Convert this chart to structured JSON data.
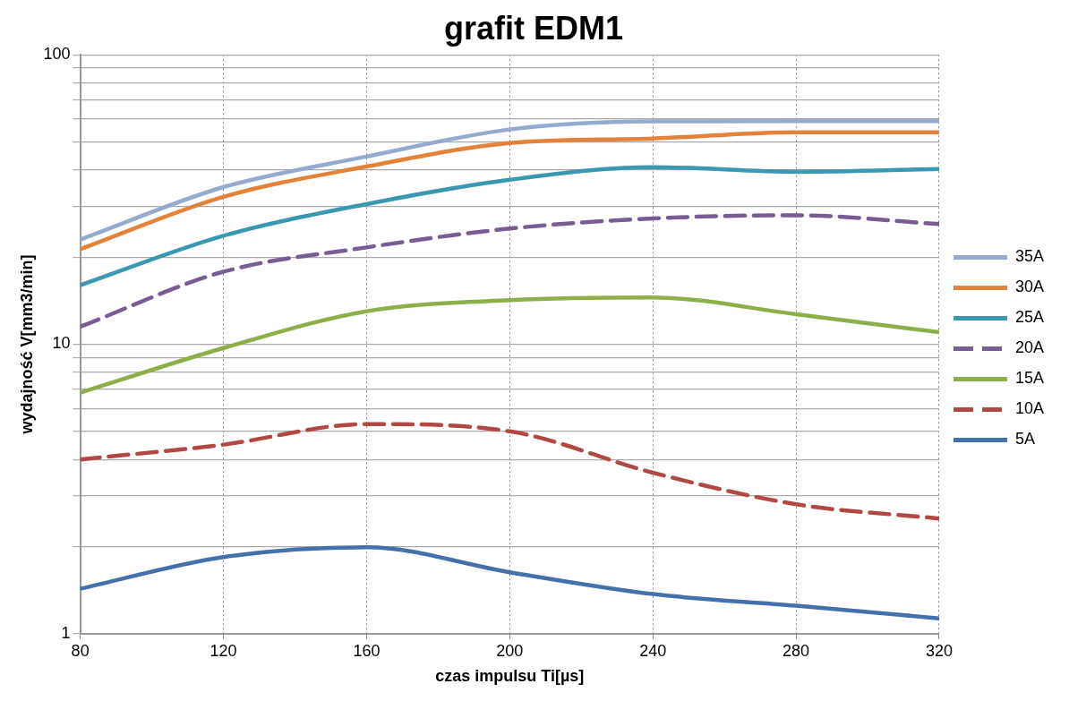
{
  "chart_data": {
    "type": "line",
    "title": "grafit EDM1",
    "xlabel": "czas impulsu Ti[µs]",
    "ylabel": "wydajność V[mm3/min]",
    "x": [
      80,
      120,
      160,
      200,
      240,
      280,
      320
    ],
    "xlim": [
      80,
      320
    ],
    "xticks": [
      80,
      120,
      160,
      200,
      240,
      280,
      320
    ],
    "ylim": [
      1,
      100
    ],
    "yticks": [
      1,
      {
        "value": 2,
        "label": null
      },
      {
        "value": 3,
        "label": null
      },
      {
        "value": 4,
        "label": null
      },
      {
        "value": 5,
        "label": null
      },
      {
        "value": 6,
        "label": null
      },
      {
        "value": 7,
        "label": null
      },
      {
        "value": 8,
        "label": null
      },
      {
        "value": 9,
        "label": null
      },
      10,
      {
        "value": 20,
        "label": null
      },
      {
        "value": 30,
        "label": null
      },
      {
        "value": 40,
        "label": null
      },
      {
        "value": 50,
        "label": null
      },
      {
        "value": 60,
        "label": null
      },
      {
        "value": 70,
        "label": null
      },
      {
        "value": 80,
        "label": null
      },
      {
        "value": 90,
        "label": null
      },
      100
    ],
    "log": "y",
    "grid": true,
    "legend": "right",
    "marker": "none",
    "series": [
      {
        "name": "35A",
        "color": "#94aace",
        "values": [
          23.0,
          34.9,
          44.5,
          55.2,
          58.9,
          59,
          59
        ]
      },
      {
        "name": "30A",
        "color": "#e3833a",
        "values": [
          21.3,
          32.3,
          41.1,
          49.6,
          51.4,
          54.0,
          54.0
        ]
      },
      {
        "name": "25A",
        "color": "#3a98b0",
        "values": [
          16.0,
          23.7,
          30.5,
          37.0,
          40.9,
          39.4,
          40.3
        ]
      },
      {
        "name": "20A",
        "color": "#7a5c94",
        "line_style": "dashed",
        "values": [
          11.5,
          17.8,
          21.6,
          25.1,
          27.2,
          27.9,
          26.0
        ]
      },
      {
        "name": "15A",
        "color": "#8caf4a",
        "values": [
          6.8,
          9.7,
          13.0,
          14.2,
          14.5,
          12.7,
          11.0
        ]
      },
      {
        "name": "10A",
        "color": "#b24844",
        "line_style": "dashed",
        "values": [
          4.0,
          4.5,
          5.3,
          5.0,
          3.6,
          2.8,
          2.5
        ]
      },
      {
        "name": "5A",
        "color": "#4471ab",
        "values": [
          1.43,
          1.84,
          1.99,
          1.63,
          1.37,
          1.25,
          1.13
        ]
      }
    ]
  }
}
